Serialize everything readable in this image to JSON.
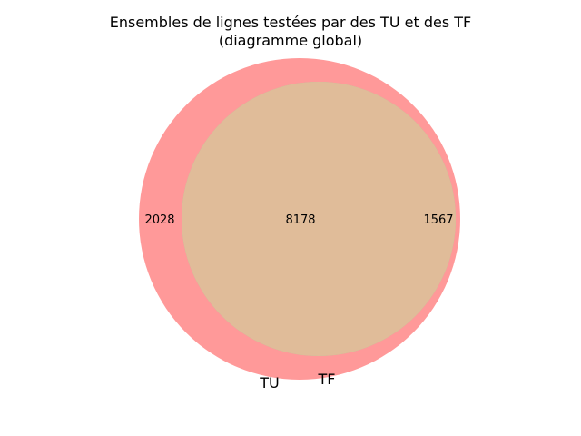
{
  "title": {
    "line1": "Ensembles de lignes testées par des TU et des TF",
    "line2": "(diagramme global)"
  },
  "sets": {
    "a": {
      "label": "TU",
      "only_count": "2028",
      "color": "#ff9999"
    },
    "b": {
      "label": "TF",
      "only_count": "1567",
      "color": "#99cc99"
    }
  },
  "intersection": {
    "count": "8178",
    "color": "#e0bc99"
  },
  "chart_data": {
    "type": "venn",
    "title": "Ensembles de lignes testées par des TU et des TF (diagramme global)",
    "sets": [
      "TU",
      "TF"
    ],
    "regions": [
      {
        "sets": [
          "TU"
        ],
        "value": 2028
      },
      {
        "sets": [
          "TU",
          "TF"
        ],
        "value": 8178
      },
      {
        "sets": [
          "TF"
        ],
        "value": 1567
      }
    ]
  }
}
